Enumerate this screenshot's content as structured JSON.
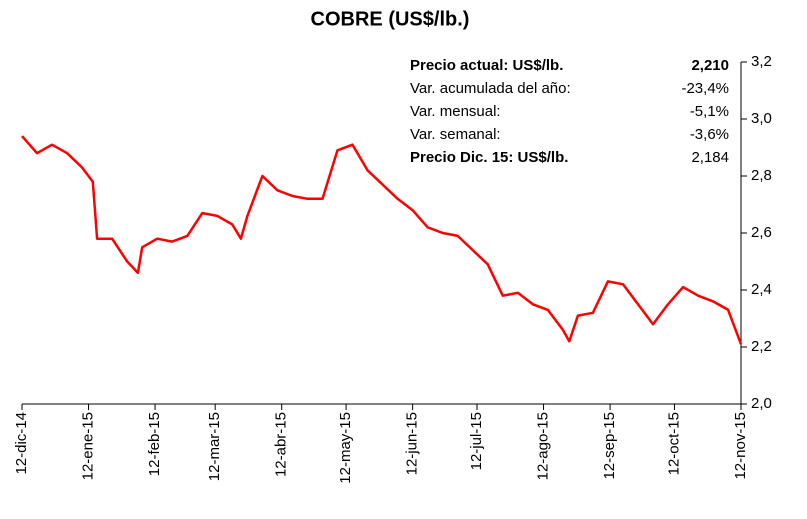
{
  "chart_data": {
    "type": "line",
    "title": "COBRE (US$/lb.)",
    "x": [
      "2014-12-12",
      "2014-12-19",
      "2014-12-26",
      "2015-01-02",
      "2015-01-09",
      "2015-01-14",
      "2015-01-16",
      "2015-01-23",
      "2015-01-30",
      "2015-02-04",
      "2015-02-06",
      "2015-02-13",
      "2015-02-20",
      "2015-02-27",
      "2015-03-06",
      "2015-03-13",
      "2015-03-20",
      "2015-03-24",
      "2015-03-27",
      "2015-04-03",
      "2015-04-10",
      "2015-04-17",
      "2015-04-24",
      "2015-05-01",
      "2015-05-08",
      "2015-05-15",
      "2015-05-22",
      "2015-05-29",
      "2015-06-05",
      "2015-06-12",
      "2015-06-19",
      "2015-06-26",
      "2015-07-03",
      "2015-07-10",
      "2015-07-17",
      "2015-07-24",
      "2015-07-31",
      "2015-08-07",
      "2015-08-14",
      "2015-08-21",
      "2015-08-24",
      "2015-08-28",
      "2015-09-04",
      "2015-09-11",
      "2015-09-18",
      "2015-09-25",
      "2015-10-02",
      "2015-10-09",
      "2015-10-16",
      "2015-10-23",
      "2015-10-30",
      "2015-11-06",
      "2015-11-12"
    ],
    "series": [
      {
        "name": "Cobre",
        "color": "#ff0000",
        "values": [
          2.94,
          2.88,
          2.91,
          2.88,
          2.83,
          2.78,
          2.58,
          2.58,
          2.5,
          2.46,
          2.55,
          2.58,
          2.57,
          2.59,
          2.67,
          2.66,
          2.63,
          2.58,
          2.66,
          2.8,
          2.75,
          2.73,
          2.72,
          2.72,
          2.89,
          2.91,
          2.82,
          2.77,
          2.72,
          2.68,
          2.62,
          2.6,
          2.59,
          2.54,
          2.49,
          2.38,
          2.39,
          2.35,
          2.33,
          2.26,
          2.22,
          2.31,
          2.32,
          2.43,
          2.42,
          2.35,
          2.28,
          2.35,
          2.41,
          2.38,
          2.36,
          2.33,
          2.21
        ]
      }
    ],
    "xlim": [
      "2014-12-12",
      "2015-11-12"
    ],
    "xticks": [
      {
        "value": "2014-12-12",
        "label": "12-dic-14"
      },
      {
        "value": "2015-01-12",
        "label": "12-ene-15"
      },
      {
        "value": "2015-02-12",
        "label": "12-feb-15"
      },
      {
        "value": "2015-03-12",
        "label": "12-mar-15"
      },
      {
        "value": "2015-04-12",
        "label": "12-abr-15"
      },
      {
        "value": "2015-05-12",
        "label": "12-may-15"
      },
      {
        "value": "2015-06-12",
        "label": "12-jun-15"
      },
      {
        "value": "2015-07-12",
        "label": "12-jul-15"
      },
      {
        "value": "2015-08-12",
        "label": "12-ago-15"
      },
      {
        "value": "2015-09-12",
        "label": "12-sep-15"
      },
      {
        "value": "2015-10-12",
        "label": "12-oct-15"
      },
      {
        "value": "2015-11-12",
        "label": "12-nov-15"
      }
    ],
    "ylim": [
      2.0,
      3.2
    ],
    "yticks": [
      {
        "value": 2.0,
        "label": "2,0"
      },
      {
        "value": 2.2,
        "label": "2,2"
      },
      {
        "value": 2.4,
        "label": "2,4"
      },
      {
        "value": 2.6,
        "label": "2,6"
      },
      {
        "value": 2.8,
        "label": "2,8"
      },
      {
        "value": 3.0,
        "label": "3,0"
      },
      {
        "value": 3.2,
        "label": "3,2"
      }
    ],
    "info": [
      {
        "label": "Precio actual: US$/lb.",
        "value": "2,210"
      },
      {
        "label": "Var. acumulada del año:",
        "value": "-23,4%"
      },
      {
        "label": "Var. mensual:",
        "value": "-5,1%"
      },
      {
        "label": "Var. semanal:",
        "value": "-3,6%"
      },
      {
        "label": "Precio Dic. 15:  US$/lb.",
        "value": "2,184"
      }
    ]
  }
}
